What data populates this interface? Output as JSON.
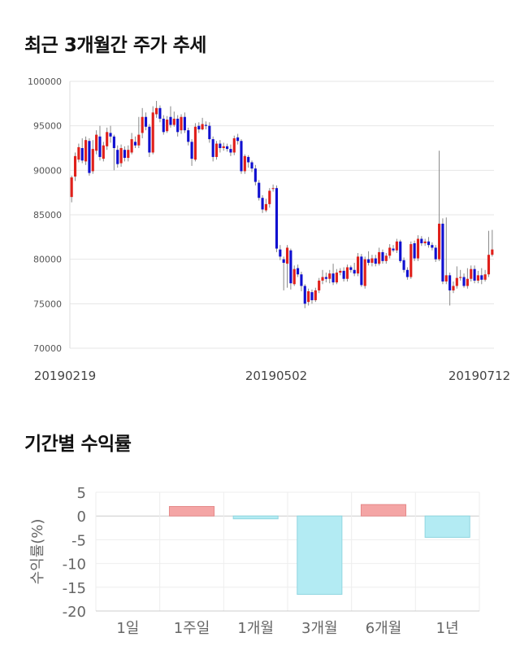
{
  "headings": {
    "price_chart_title": "최근 3개월간 주가 추세",
    "returns_chart_title": "기간별 수익률"
  },
  "chart_data": [
    {
      "type": "candlestick",
      "title": "최근 3개월간 주가 추세",
      "y_ticks": [
        "100000",
        "95000",
        "90000",
        "85000",
        "80000",
        "75000",
        "70000"
      ],
      "ylim": [
        70000,
        100000
      ],
      "x_labels": [
        "20190219",
        "20190502",
        "20190712"
      ],
      "grid": true,
      "up_color": "#e0201b",
      "down_color": "#1010d0",
      "candles": [
        [
          87000,
          89200,
          86400,
          89400
        ],
        [
          89300,
          91600,
          88800,
          92000
        ],
        [
          91200,
          92600,
          90900,
          93000
        ],
        [
          92500,
          91100,
          90800,
          93600
        ],
        [
          91000,
          93400,
          90600,
          93800
        ],
        [
          93300,
          89700,
          89400,
          93600
        ],
        [
          89900,
          92400,
          89600,
          93400
        ],
        [
          92200,
          94000,
          91800,
          94500
        ],
        [
          93800,
          91500,
          91100,
          95000
        ],
        [
          91300,
          92800,
          91000,
          93200
        ],
        [
          92700,
          94300,
          92300,
          94800
        ],
        [
          94200,
          93800,
          93100,
          95000
        ],
        [
          93800,
          92500,
          90000,
          94000
        ],
        [
          92300,
          90700,
          90300,
          92800
        ],
        [
          90800,
          92500,
          90400,
          92900
        ],
        [
          92300,
          91400,
          91000,
          92700
        ],
        [
          91400,
          92300,
          91000,
          92800
        ],
        [
          92000,
          93500,
          91800,
          94200
        ],
        [
          93200,
          92800,
          92500,
          93800
        ],
        [
          92800,
          94000,
          92500,
          96000
        ],
        [
          94200,
          96000,
          93600,
          97000
        ],
        [
          96000,
          94900,
          94500,
          96500
        ],
        [
          94900,
          92000,
          91500,
          95200
        ],
        [
          92000,
          96500,
          91800,
          97200
        ],
        [
          96300,
          97000,
          95900,
          97800
        ],
        [
          97000,
          95800,
          95400,
          97300
        ],
        [
          95800,
          94300,
          94000,
          96200
        ],
        [
          94400,
          95700,
          94200,
          96100
        ],
        [
          96000,
          95100,
          94800,
          97200
        ],
        [
          95100,
          95800,
          94900,
          96600
        ],
        [
          95800,
          94300,
          93800,
          96200
        ],
        [
          94500,
          96000,
          94100,
          96300
        ],
        [
          96000,
          94500,
          94200,
          96500
        ],
        [
          94500,
          93200,
          92800,
          94800
        ],
        [
          93200,
          91300,
          90500,
          93500
        ],
        [
          91200,
          94900,
          91000,
          95300
        ],
        [
          95000,
          94600,
          94200,
          95400
        ],
        [
          94600,
          95200,
          94500,
          95900
        ],
        [
          95100,
          95000,
          94600,
          95500
        ],
        [
          95000,
          93500,
          93100,
          95400
        ],
        [
          93500,
          91500,
          91000,
          93800
        ],
        [
          91500,
          93000,
          91200,
          93300
        ],
        [
          93000,
          92500,
          92000,
          93400
        ],
        [
          92500,
          92700,
          92200,
          93100
        ],
        [
          92700,
          92400,
          92100,
          93000
        ],
        [
          92400,
          92000,
          91600,
          92900
        ],
        [
          92000,
          93600,
          91700,
          93900
        ],
        [
          93700,
          93300,
          92900,
          94100
        ],
        [
          93300,
          89900,
          89600,
          93500
        ],
        [
          89900,
          91600,
          89600,
          91800
        ],
        [
          91500,
          90900,
          90300,
          91700
        ],
        [
          90900,
          90200,
          89800,
          91100
        ],
        [
          90200,
          88700,
          88300,
          90600
        ],
        [
          88600,
          86900,
          86600,
          88900
        ],
        [
          86900,
          85600,
          85200,
          87200
        ],
        [
          85500,
          86200,
          85300,
          86800
        ],
        [
          86200,
          87700,
          85800,
          88000
        ],
        [
          87900,
          88000,
          87600,
          88400
        ],
        [
          88000,
          81200,
          80800,
          88300
        ],
        [
          81100,
          80300,
          79900,
          81600
        ],
        [
          80000,
          79600,
          76500,
          80300
        ],
        [
          79500,
          81300,
          76800,
          81600
        ],
        [
          81000,
          77300,
          76600,
          81200
        ],
        [
          77200,
          78900,
          77000,
          79300
        ],
        [
          79000,
          78300,
          78000,
          79400
        ],
        [
          78300,
          77000,
          76400,
          78600
        ],
        [
          77000,
          75000,
          74500,
          77200
        ],
        [
          75200,
          76400,
          74800,
          76700
        ],
        [
          76300,
          75400,
          75000,
          76600
        ],
        [
          75400,
          76500,
          75200,
          76800
        ],
        [
          76500,
          77600,
          76200,
          77900
        ],
        [
          77600,
          78000,
          77200,
          78800
        ],
        [
          78000,
          77800,
          77400,
          78500
        ],
        [
          77800,
          78400,
          77300,
          78800
        ],
        [
          78400,
          77400,
          77100,
          79500
        ],
        [
          77400,
          78500,
          77200,
          78900
        ],
        [
          78500,
          78700,
          78200,
          79000
        ],
        [
          78700,
          77800,
          77500,
          79100
        ],
        [
          77800,
          79100,
          77500,
          79400
        ],
        [
          79100,
          78800,
          78500,
          79300
        ],
        [
          78800,
          78400,
          78100,
          79600
        ],
        [
          78400,
          80300,
          78100,
          80700
        ],
        [
          80300,
          77100,
          76900,
          80600
        ],
        [
          77000,
          80000,
          76700,
          80300
        ],
        [
          80000,
          79600,
          79300,
          80900
        ],
        [
          79600,
          80100,
          79200,
          80500
        ],
        [
          80100,
          79500,
          79200,
          80500
        ],
        [
          79500,
          80800,
          79300,
          81300
        ],
        [
          80800,
          79800,
          79500,
          81100
        ],
        [
          79800,
          80400,
          79500,
          80700
        ],
        [
          80400,
          81300,
          80100,
          81700
        ],
        [
          81200,
          81000,
          80800,
          81600
        ],
        [
          81000,
          82000,
          80700,
          82300
        ],
        [
          82000,
          79800,
          79600,
          82200
        ],
        [
          79900,
          78800,
          78500,
          80200
        ],
        [
          78800,
          78000,
          77700,
          79100
        ],
        [
          78000,
          81700,
          77800,
          82000
        ],
        [
          81800,
          80100,
          79800,
          82100
        ],
        [
          80100,
          82300,
          79800,
          82700
        ],
        [
          82300,
          81800,
          81500,
          82600
        ],
        [
          81800,
          82000,
          81500,
          82300
        ],
        [
          82000,
          81600,
          81300,
          82500
        ],
        [
          81600,
          81300,
          81000,
          81900
        ],
        [
          81300,
          80000,
          79700,
          81600
        ],
        [
          80000,
          84000,
          79800,
          92200
        ],
        [
          84000,
          77500,
          77200,
          84600
        ],
        [
          77500,
          78200,
          77200,
          84700
        ],
        [
          78200,
          76500,
          74800,
          78500
        ],
        [
          76500,
          77000,
          76200,
          77500
        ],
        [
          77000,
          77900,
          76700,
          79200
        ],
        [
          77900,
          78000,
          77600,
          78800
        ],
        [
          78000,
          77000,
          76800,
          78400
        ],
        [
          77000,
          77800,
          76700,
          79000
        ],
        [
          77800,
          78900,
          77500,
          79300
        ],
        [
          78900,
          77600,
          77300,
          79300
        ],
        [
          77600,
          78200,
          77300,
          78700
        ],
        [
          78200,
          77700,
          77200,
          79000
        ],
        [
          77700,
          78300,
          77500,
          78800
        ],
        [
          78300,
          80500,
          78000,
          83200
        ],
        [
          80500,
          81100,
          80300,
          83300
        ]
      ]
    },
    {
      "type": "bar",
      "title": "기간별 수익률",
      "ylabel": "수익률(%)",
      "categories": [
        "1일",
        "1주일",
        "1개월",
        "3개월",
        "6개월",
        "1년"
      ],
      "values": [
        0,
        2.0,
        -0.6,
        -16.5,
        2.4,
        -4.5
      ],
      "y_ticks": [
        "5",
        "0",
        "-5",
        "-10",
        "-15",
        "-20"
      ],
      "ylim": [
        -20,
        5
      ],
      "positive_fill": "#f4a5a5",
      "negative_fill": "#b3ebf3"
    }
  ]
}
